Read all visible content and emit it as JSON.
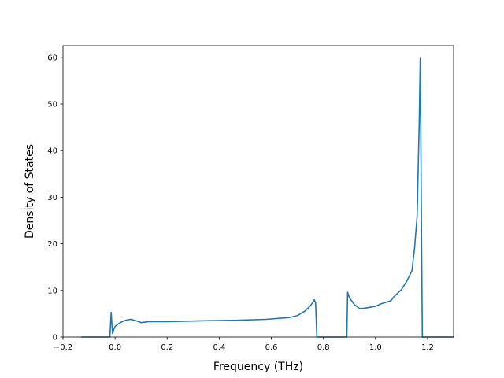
{
  "chart_data": {
    "type": "line",
    "title": "",
    "xlabel": "Frequency (THz)",
    "ylabel": "Density of States",
    "xlim": [
      -0.2,
      1.3
    ],
    "ylim": [
      0,
      62.5
    ],
    "xticks": [
      -0.2,
      0.0,
      0.2,
      0.4,
      0.6,
      0.8,
      1.0,
      1.2
    ],
    "xtick_labels": [
      "−0.2",
      "0.0",
      "0.2",
      "0.4",
      "0.6",
      "0.8",
      "1.0",
      "1.2"
    ],
    "yticks": [
      0,
      10,
      20,
      30,
      40,
      50,
      60
    ],
    "ytick_labels": [
      "0",
      "10",
      "20",
      "30",
      "40",
      "50",
      "60"
    ],
    "grid": false,
    "color": "#1f77b4",
    "series": [
      {
        "x": [
          -0.13,
          -0.02,
          -0.015,
          -0.01,
          -0.005,
          0.0,
          0.02,
          0.04,
          0.06,
          0.08,
          0.1,
          0.115,
          0.13,
          0.2,
          0.35,
          0.47,
          0.58,
          0.67,
          0.7,
          0.73,
          0.75,
          0.76,
          0.765,
          0.77,
          0.775,
          0.89,
          0.893,
          0.9,
          0.92,
          0.94,
          0.96,
          1.0,
          1.02,
          1.06,
          1.07,
          1.1,
          1.12,
          1.14,
          1.15,
          1.16,
          1.168,
          1.172,
          1.177,
          1.18,
          1.3
        ],
        "y": [
          0,
          0,
          5.3,
          0.8,
          1.6,
          2.3,
          3.1,
          3.6,
          3.8,
          3.5,
          3.1,
          3.2,
          3.3,
          3.3,
          3.5,
          3.6,
          3.8,
          4.2,
          4.6,
          5.6,
          6.7,
          7.5,
          8.0,
          7.3,
          0,
          0,
          9.6,
          8.4,
          6.9,
          6.1,
          6.2,
          6.6,
          7.1,
          7.8,
          8.6,
          10.2,
          12.0,
          14.2,
          19.0,
          26.0,
          46.0,
          59.8,
          20.0,
          0,
          0
        ]
      }
    ]
  }
}
